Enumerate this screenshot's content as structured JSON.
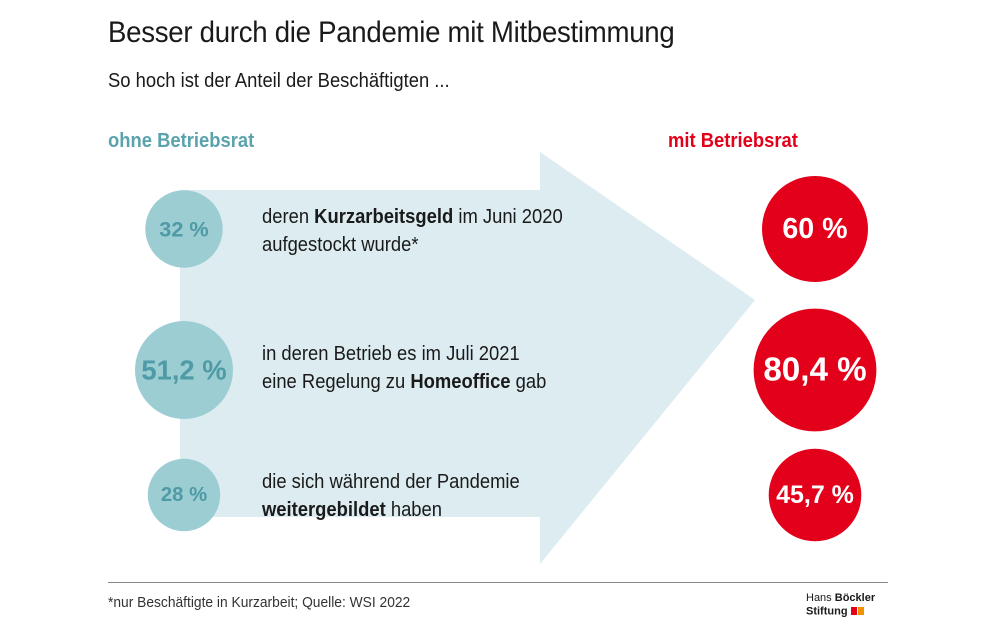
{
  "title": "Besser durch die Pandemie mit Mitbestimmung",
  "subtitle": "So hoch ist der Anteil der Beschäftigten ...",
  "chart_data": {
    "type": "bubble-comparison",
    "unit": "%",
    "groups": [
      {
        "name": "ohne Betriebsrat",
        "color": "#9ccdd3",
        "text_color": "#4e9aa5"
      },
      {
        "name": "mit Betriebsrat",
        "color": "#e2001a",
        "text_color": "#ffffff"
      }
    ],
    "rows": [
      {
        "label_parts": [
          "deren ",
          "Kurzarbeitsgeld",
          " im Juni 2020",
          "aufgestockt wurde*"
        ],
        "ohne": 32,
        "ohne_label": "32 %",
        "mit": 60,
        "mit_label": "60 %"
      },
      {
        "label_parts": [
          "in deren Betrieb es im Juli 2021",
          "eine Regelung zu ",
          "Homeoffice",
          " gab"
        ],
        "ohne": 51.2,
        "ohne_label": "51,2 %",
        "mit": 80.4,
        "mit_label": "80,4 %"
      },
      {
        "label_parts": [
          "die sich während der Pandemie",
          "weitergebildet",
          " haben"
        ],
        "ohne": 28,
        "ohne_label": "28 %",
        "mit": 45.7,
        "mit_label": "45,7 %"
      }
    ]
  },
  "footnote": "*nur Beschäftigte in Kurzarbeit; Quelle: WSI 2022",
  "logo": {
    "line1_a": "Hans ",
    "line1_b": "Böckler",
    "line2": "Stiftung"
  },
  "colors": {
    "arrow": "#dcecf1",
    "teal": "#9ccdd3",
    "red": "#e2001a",
    "logo_red": "#e2001a",
    "logo_orange": "#f39200"
  }
}
